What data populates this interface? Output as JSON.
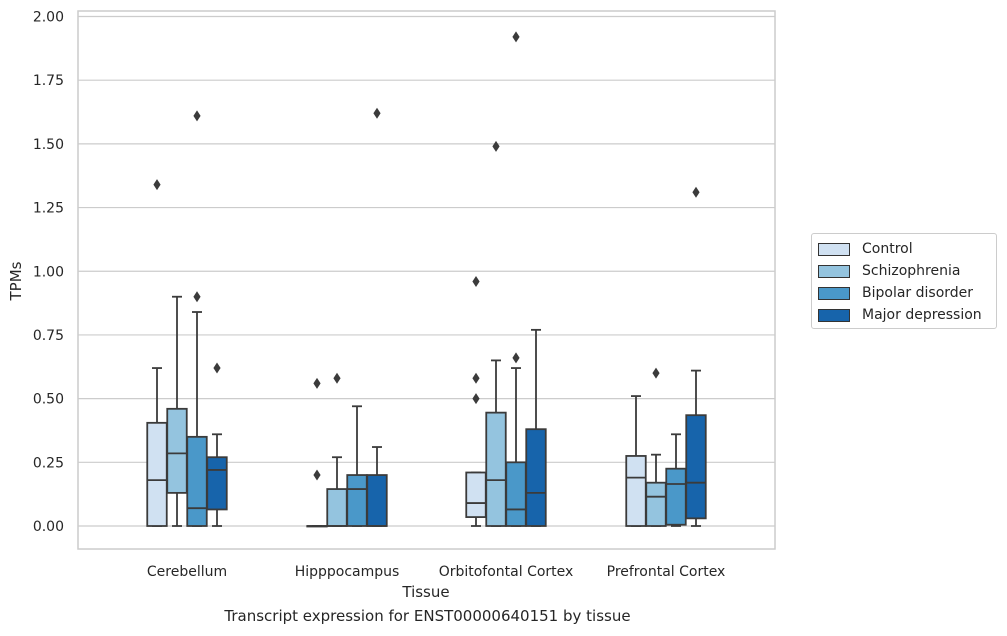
{
  "caption": "Transcript expression for ENST00000640151 by tissue",
  "chart_data": {
    "type": "box",
    "title": "",
    "xlabel": "Tissue",
    "ylabel": "TPMs",
    "ylim": [
      -0.09,
      2.02
    ],
    "yticks": [
      "0.00",
      "0.25",
      "0.50",
      "0.75",
      "1.00",
      "1.25",
      "1.50",
      "1.75",
      "2.00"
    ],
    "grid": "horizontal",
    "legend_position": "right",
    "categories": [
      "Cerebellum",
      "Hipppocampus",
      "Orbitofontal Cortex",
      "Prefrontal Cortex"
    ],
    "series": [
      {
        "name": "Control",
        "color": "#d0e1f2",
        "boxes": [
          {
            "whislo": 0.0,
            "q1": 0.0,
            "med": 0.18,
            "q3": 0.405,
            "whishi": 0.62,
            "fliers": [
              1.34
            ]
          },
          {
            "whislo": 0.0,
            "q1": 0.0,
            "med": 0.0,
            "q3": 0.0,
            "whishi": 0.0,
            "fliers": [
              0.2,
              0.56
            ]
          },
          {
            "whislo": 0.0,
            "q1": 0.035,
            "med": 0.09,
            "q3": 0.21,
            "whishi": 0.21,
            "fliers": [
              0.5,
              0.58,
              0.96
            ]
          },
          {
            "whislo": 0.0,
            "q1": 0.0,
            "med": 0.19,
            "q3": 0.275,
            "whishi": 0.51,
            "fliers": []
          }
        ]
      },
      {
        "name": "Schizophrenia",
        "color": "#94c4df",
        "boxes": [
          {
            "whislo": 0.0,
            "q1": 0.13,
            "med": 0.285,
            "q3": 0.46,
            "whishi": 0.9,
            "fliers": []
          },
          {
            "whislo": 0.0,
            "q1": 0.0,
            "med": 0.0,
            "q3": 0.145,
            "whishi": 0.27,
            "fliers": [
              0.58
            ]
          },
          {
            "whislo": 0.0,
            "q1": 0.0,
            "med": 0.18,
            "q3": 0.445,
            "whishi": 0.65,
            "fliers": [
              1.49
            ]
          },
          {
            "whislo": 0.0,
            "q1": 0.0,
            "med": 0.115,
            "q3": 0.17,
            "whishi": 0.28,
            "fliers": [
              0.6
            ]
          }
        ]
      },
      {
        "name": "Bipolar disorder",
        "color": "#4a98c9",
        "boxes": [
          {
            "whislo": 0.0,
            "q1": 0.0,
            "med": 0.07,
            "q3": 0.35,
            "whishi": 0.84,
            "fliers": [
              0.9,
              1.61
            ]
          },
          {
            "whislo": 0.0,
            "q1": 0.0,
            "med": 0.145,
            "q3": 0.2,
            "whishi": 0.47,
            "fliers": []
          },
          {
            "whislo": 0.0,
            "q1": 0.0,
            "med": 0.065,
            "q3": 0.25,
            "whishi": 0.62,
            "fliers": [
              0.66,
              1.92
            ]
          },
          {
            "whislo": 0.0,
            "q1": 0.005,
            "med": 0.165,
            "q3": 0.225,
            "whishi": 0.36,
            "fliers": []
          }
        ]
      },
      {
        "name": "Major depression",
        "color": "#1764ab",
        "boxes": [
          {
            "whislo": 0.0,
            "q1": 0.065,
            "med": 0.22,
            "q3": 0.27,
            "whishi": 0.36,
            "fliers": [
              0.62
            ]
          },
          {
            "whislo": 0.0,
            "q1": 0.0,
            "med": 0.0,
            "q3": 0.2,
            "whishi": 0.31,
            "fliers": [
              1.62
            ]
          },
          {
            "whislo": 0.0,
            "q1": 0.0,
            "med": 0.13,
            "q3": 0.38,
            "whishi": 0.77,
            "fliers": []
          },
          {
            "whislo": 0.0,
            "q1": 0.03,
            "med": 0.17,
            "q3": 0.435,
            "whishi": 0.61,
            "fliers": [
              1.31
            ]
          }
        ]
      }
    ]
  }
}
